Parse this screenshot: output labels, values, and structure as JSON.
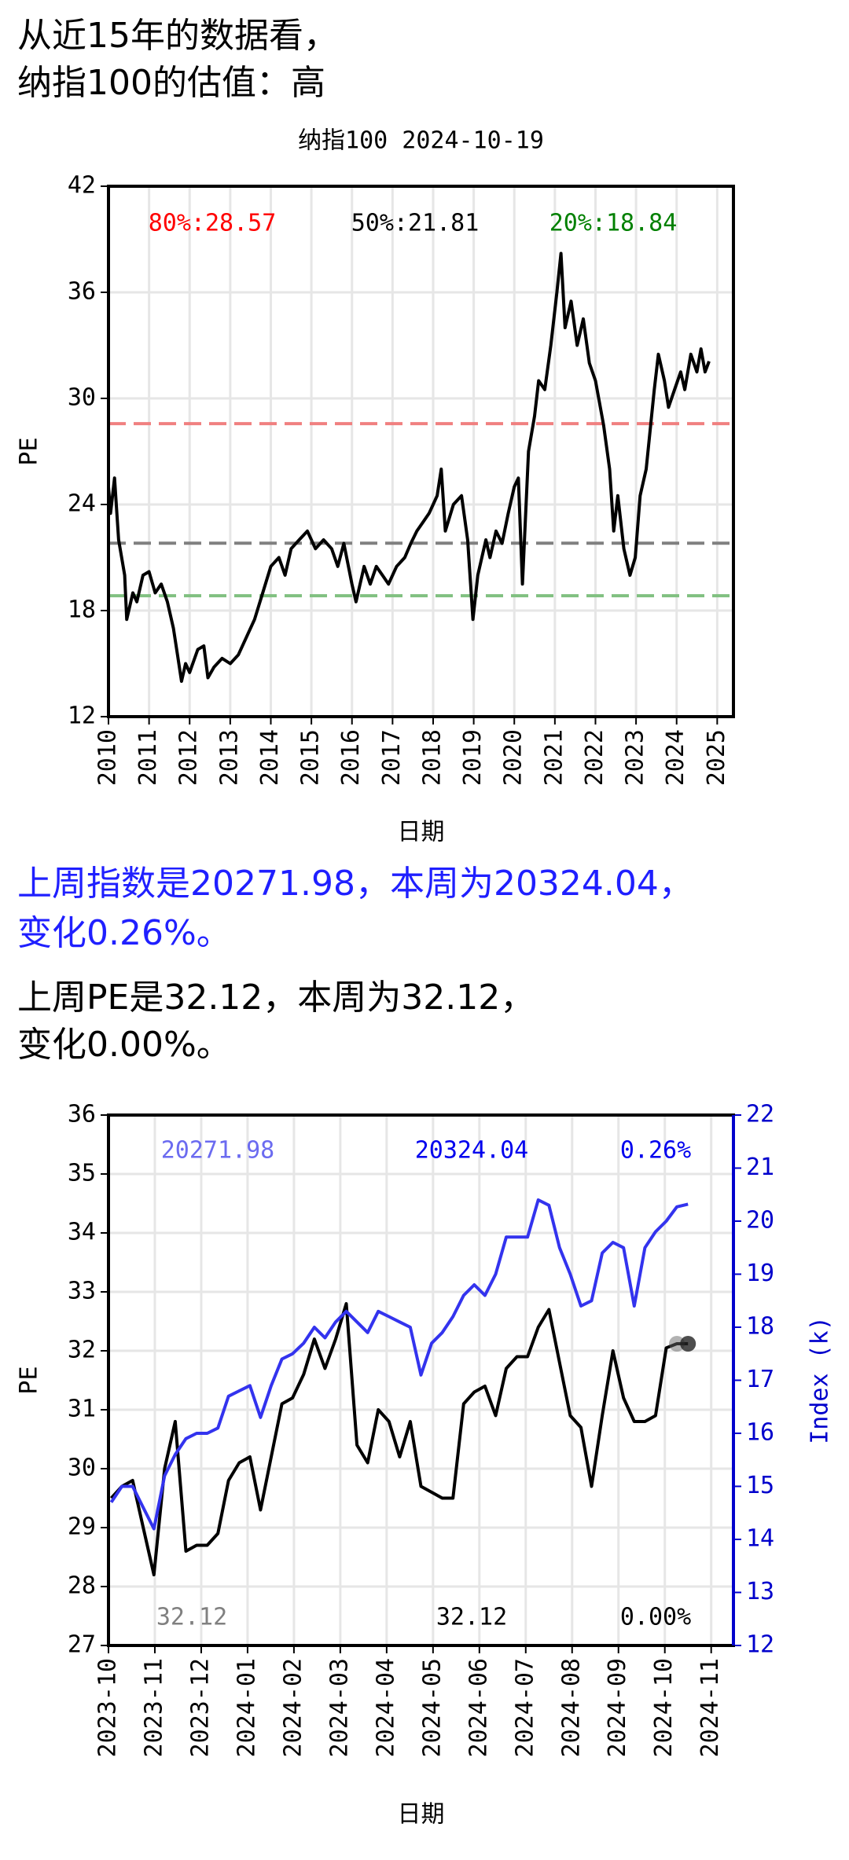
{
  "header": {
    "lines": [
      "从近15年的数据看，",
      "纳指100的估值：高"
    ]
  },
  "index_text": {
    "lines": [
      "上周指数是20271.98，本周为20324.04，",
      "变化0.26%。"
    ],
    "color": "#1f1fff"
  },
  "pe_text": {
    "lines": [
      "上周PE是32.12，本周为32.12，",
      "变化0.00%。"
    ],
    "color": "#000000"
  },
  "chart_data": [
    {
      "type": "line",
      "title": "纳指100 2024-10-19",
      "x_label": "日期",
      "y_label": "PE",
      "xlim": [
        2010,
        2025.4
      ],
      "xticks": [
        2010,
        2011,
        2012,
        2013,
        2014,
        2015,
        2016,
        2017,
        2018,
        2019,
        2020,
        2021,
        2022,
        2023,
        2024,
        2025
      ],
      "ylim": [
        12,
        42
      ],
      "yticks": [
        12,
        18,
        24,
        30,
        36,
        42
      ],
      "grid": true,
      "x": [
        2010.0,
        2010.05,
        2010.15,
        2010.25,
        2010.4,
        2010.45,
        2010.6,
        2010.7,
        2010.85,
        2011.0,
        2011.15,
        2011.3,
        2011.45,
        2011.6,
        2011.7,
        2011.8,
        2011.9,
        2012.0,
        2012.2,
        2012.35,
        2012.45,
        2012.6,
        2012.8,
        2013.0,
        2013.2,
        2013.4,
        2013.6,
        2013.8,
        2014.0,
        2014.2,
        2014.35,
        2014.5,
        2014.7,
        2014.9,
        2015.1,
        2015.3,
        2015.5,
        2015.65,
        2015.8,
        2016.0,
        2016.1,
        2016.3,
        2016.45,
        2016.6,
        2016.75,
        2016.9,
        2017.1,
        2017.3,
        2017.45,
        2017.6,
        2017.75,
        2017.9,
        2018.0,
        2018.1,
        2018.2,
        2018.3,
        2018.5,
        2018.7,
        2018.85,
        2018.98,
        2019.1,
        2019.3,
        2019.4,
        2019.55,
        2019.7,
        2019.85,
        2020.0,
        2020.1,
        2020.2,
        2020.35,
        2020.5,
        2020.6,
        2020.75,
        2020.9,
        2021.05,
        2021.15,
        2021.25,
        2021.4,
        2021.55,
        2021.7,
        2021.85,
        2022.0,
        2022.2,
        2022.35,
        2022.45,
        2022.55,
        2022.7,
        2022.85,
        2022.98,
        2023.1,
        2023.25,
        2023.45,
        2023.55,
        2023.7,
        2023.8,
        2023.95,
        2024.1,
        2024.2,
        2024.35,
        2024.5,
        2024.6,
        2024.7,
        2024.8
      ],
      "series": [
        {
          "name": "PE",
          "color": "#000000",
          "values": [
            25,
            23.5,
            25.5,
            22,
            20,
            17.5,
            19,
            18.5,
            20,
            20.2,
            19,
            19.5,
            18.5,
            17,
            15.5,
            14,
            15,
            14.5,
            15.8,
            16,
            14.2,
            14.8,
            15.3,
            15,
            15.5,
            16.5,
            17.5,
            19,
            20.5,
            21,
            20,
            21.5,
            22,
            22.5,
            21.5,
            22,
            21.5,
            20.5,
            21.8,
            19.5,
            18.5,
            20.5,
            19.5,
            20.5,
            20,
            19.5,
            20.5,
            21,
            21.8,
            22.5,
            23,
            23.5,
            24,
            24.5,
            26,
            22.5,
            24,
            24.5,
            22,
            17.5,
            20,
            22,
            21,
            22.5,
            21.8,
            23.5,
            25,
            25.5,
            19.5,
            27,
            29,
            31,
            30.5,
            33,
            36,
            38.2,
            34,
            35.5,
            33,
            34.5,
            32,
            31,
            28.5,
            26,
            22.5,
            24.5,
            21.5,
            20,
            21,
            24.5,
            26,
            30.5,
            32.5,
            31,
            29.5,
            30.5,
            31.5,
            30.5,
            32.5,
            31.5,
            32.8,
            31.5,
            32.1
          ]
        }
      ],
      "reference_lines": [
        {
          "label": "80%:28.57",
          "value": 28.57,
          "color": "#ff0000",
          "line_color": "#f08080"
        },
        {
          "label": "50%:21.81",
          "value": 21.81,
          "color": "#000000",
          "line_color": "#808080"
        },
        {
          "label": "20%:18.84",
          "value": 18.84,
          "color": "#008000",
          "line_color": "#80c080"
        }
      ]
    },
    {
      "type": "line",
      "x_label": "日期",
      "y_label": "PE",
      "y2_label": "Index (k)",
      "xlim": [
        0,
        13.48
      ],
      "xticks": [
        {
          "value": 0,
          "label": "2023-10"
        },
        {
          "value": 1,
          "label": "2023-11"
        },
        {
          "value": 2,
          "label": "2023-12"
        },
        {
          "value": 3,
          "label": "2024-01"
        },
        {
          "value": 4,
          "label": "2024-02"
        },
        {
          "value": 5,
          "label": "2024-03"
        },
        {
          "value": 6,
          "label": "2024-04"
        },
        {
          "value": 7,
          "label": "2024-05"
        },
        {
          "value": 8,
          "label": "2024-06"
        },
        {
          "value": 9,
          "label": "2024-07"
        },
        {
          "value": 10,
          "label": "2024-08"
        },
        {
          "value": 11,
          "label": "2024-09"
        },
        {
          "value": 12,
          "label": "2024-10"
        },
        {
          "value": 13,
          "label": "2024-11"
        }
      ],
      "ylim": [
        27,
        36
      ],
      "yticks": [
        27,
        28,
        29,
        30,
        31,
        32,
        33,
        34,
        35,
        36
      ],
      "y2lim": [
        12,
        22
      ],
      "y2ticks": [
        12,
        13,
        14,
        15,
        16,
        17,
        18,
        19,
        20,
        21,
        22
      ],
      "y2_color": "#0000cc",
      "grid": true,
      "x": [
        0.06,
        0.29,
        0.52,
        0.75,
        0.98,
        1.21,
        1.44,
        1.67,
        1.9,
        2.13,
        2.36,
        2.59,
        2.82,
        3.05,
        3.28,
        3.51,
        3.74,
        3.97,
        4.21,
        4.44,
        4.67,
        4.9,
        5.13,
        5.36,
        5.59,
        5.82,
        6.05,
        6.28,
        6.51,
        6.74,
        6.97,
        7.2,
        7.43,
        7.66,
        7.89,
        8.12,
        8.35,
        8.58,
        8.81,
        9.04,
        9.27,
        9.5,
        9.73,
        9.96,
        10.19,
        10.42,
        10.65,
        10.88,
        11.11,
        11.34,
        11.57,
        11.8,
        12.03,
        12.26,
        12.5
      ],
      "series": [
        {
          "name": "PE",
          "color": "#000000",
          "values": [
            29.5,
            29.7,
            29.8,
            29.0,
            28.2,
            30.0,
            30.8,
            28.6,
            28.7,
            28.7,
            28.9,
            29.8,
            30.1,
            30.2,
            29.3,
            30.2,
            31.1,
            31.2,
            31.6,
            32.2,
            31.7,
            32.2,
            32.8,
            30.4,
            30.1,
            31.0,
            30.8,
            30.2,
            30.8,
            29.7,
            29.6,
            29.5,
            29.5,
            31.1,
            31.3,
            31.4,
            30.9,
            31.7,
            31.9,
            31.9,
            32.4,
            32.7,
            31.8,
            30.9,
            30.7,
            29.7,
            30.9,
            32.0,
            31.2,
            30.8,
            30.8,
            30.9,
            32.05,
            32.12,
            32.12
          ]
        },
        {
          "name": "Index",
          "color": "#3333ee",
          "axis": "y2",
          "values": [
            14.7,
            15.0,
            15.0,
            14.6,
            14.2,
            15.2,
            15.6,
            15.9,
            16.0,
            16.0,
            16.1,
            16.7,
            16.8,
            16.9,
            16.3,
            16.9,
            17.4,
            17.5,
            17.7,
            18.0,
            17.8,
            18.1,
            18.3,
            18.1,
            17.9,
            18.3,
            18.2,
            18.1,
            18.0,
            17.1,
            17.7,
            17.9,
            18.2,
            18.6,
            18.8,
            18.6,
            19.0,
            19.7,
            19.7,
            19.7,
            20.4,
            20.3,
            19.5,
            19.0,
            18.4,
            18.5,
            19.4,
            19.6,
            19.5,
            18.4,
            19.5,
            19.8,
            20.0,
            20.27,
            20.32
          ]
        }
      ],
      "annotations": [
        {
          "text": "20271.98",
          "color": "#6b6bf0"
        },
        {
          "text": "20324.04",
          "color": "#0000ee"
        },
        {
          "text": "0.26%",
          "color": "#0000ee"
        },
        {
          "text": "32.12",
          "color": "#808080"
        },
        {
          "text": "32.12",
          "color": "#000000"
        },
        {
          "text": "0.00%",
          "color": "#000000"
        }
      ]
    }
  ]
}
